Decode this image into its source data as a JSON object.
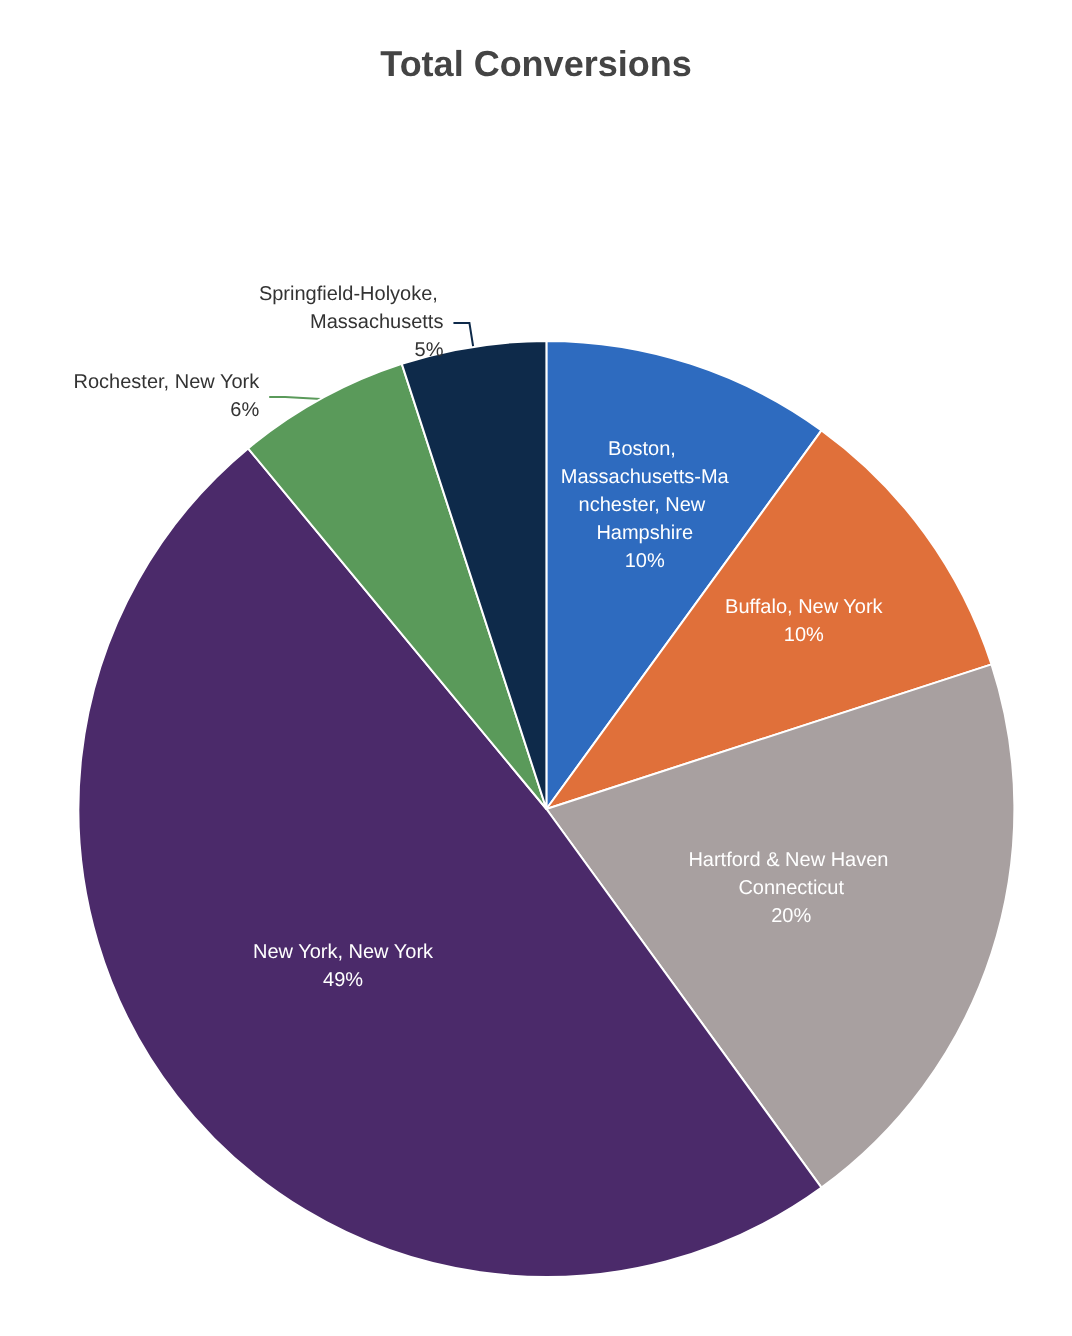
{
  "chart_data": {
    "type": "pie",
    "title": "Total Conversions",
    "categories": [
      "Boston, Massachusetts-Manchester, New Hampshire",
      "Buffalo, New York",
      "Hartford & New Haven Connecticut",
      "New York, New York",
      "Rochester, New York",
      "Springfield-Holyoke, Massachusetts"
    ],
    "values": [
      10,
      10,
      20,
      49,
      6,
      5
    ],
    "value_labels": [
      "10%",
      "10%",
      "20%",
      "49%",
      "6%",
      "5%"
    ],
    "colors": [
      "#2e6bbf",
      "#e0703a",
      "#a8a0a0",
      "#4b2a6a",
      "#5a9a5a",
      "#0e2a4a"
    ],
    "legend": false
  }
}
